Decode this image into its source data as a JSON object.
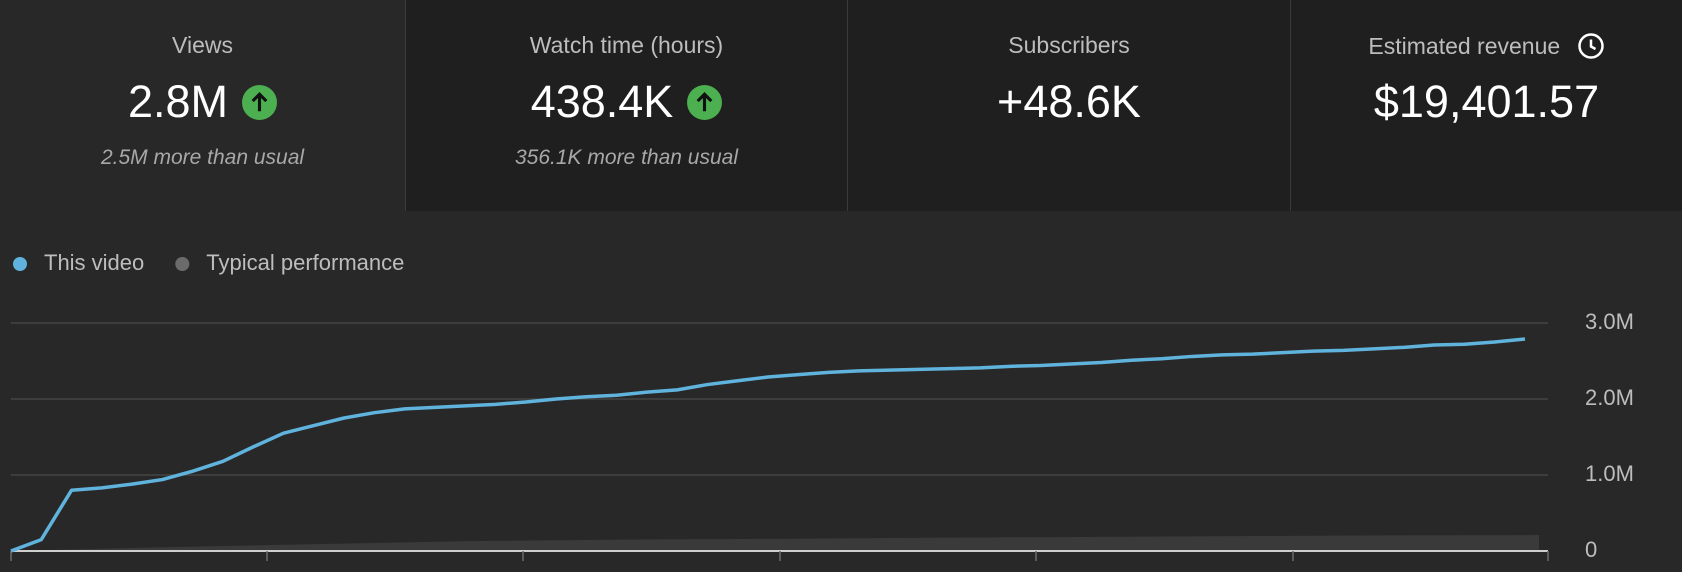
{
  "cards": [
    {
      "label": "Views",
      "value": "2.8M",
      "trend": "up",
      "note": "2.5M more than usual"
    },
    {
      "label": "Watch time (hours)",
      "value": "438.4K",
      "trend": "up",
      "note": "356.1K more than usual"
    },
    {
      "label": "Subscribers",
      "value": "+48.6K"
    },
    {
      "label": "Estimated revenue",
      "value": "$19,401.57"
    }
  ],
  "chart_data": {
    "type": "line",
    "series": [
      {
        "name": "This video",
        "color": "#5fb3dc",
        "values": [
          0,
          150000,
          800000,
          830000,
          880000,
          940000,
          1050000,
          1180000,
          1370000,
          1550000,
          1650000,
          1750000,
          1820000,
          1870000,
          1890000,
          1910000,
          1930000,
          1960000,
          2000000,
          2030000,
          2050000,
          2090000,
          2120000,
          2190000,
          2240000,
          2290000,
          2320000,
          2350000,
          2370000,
          2380000,
          2390000,
          2400000,
          2410000,
          2430000,
          2440000,
          2460000,
          2480000,
          2510000,
          2530000,
          2560000,
          2580000,
          2590000,
          2610000,
          2630000,
          2640000,
          2660000,
          2680000,
          2710000,
          2720000,
          2750000,
          2790000
        ]
      },
      {
        "name": "Typical performance",
        "color": "#6b6b6b",
        "values": [
          0,
          50000,
          90000,
          130000,
          150000,
          160000,
          175000,
          185000,
          195000,
          205000,
          210000
        ]
      }
    ],
    "ylim": [
      0,
      3000000
    ],
    "yticks": [
      0,
      {
        "value": 1000000,
        "label": "1.0M"
      },
      {
        "value": 2000000,
        "label": "2.0M"
      },
      {
        "value": 3000000,
        "label": "3.0M"
      }
    ],
    "grid": true
  }
}
